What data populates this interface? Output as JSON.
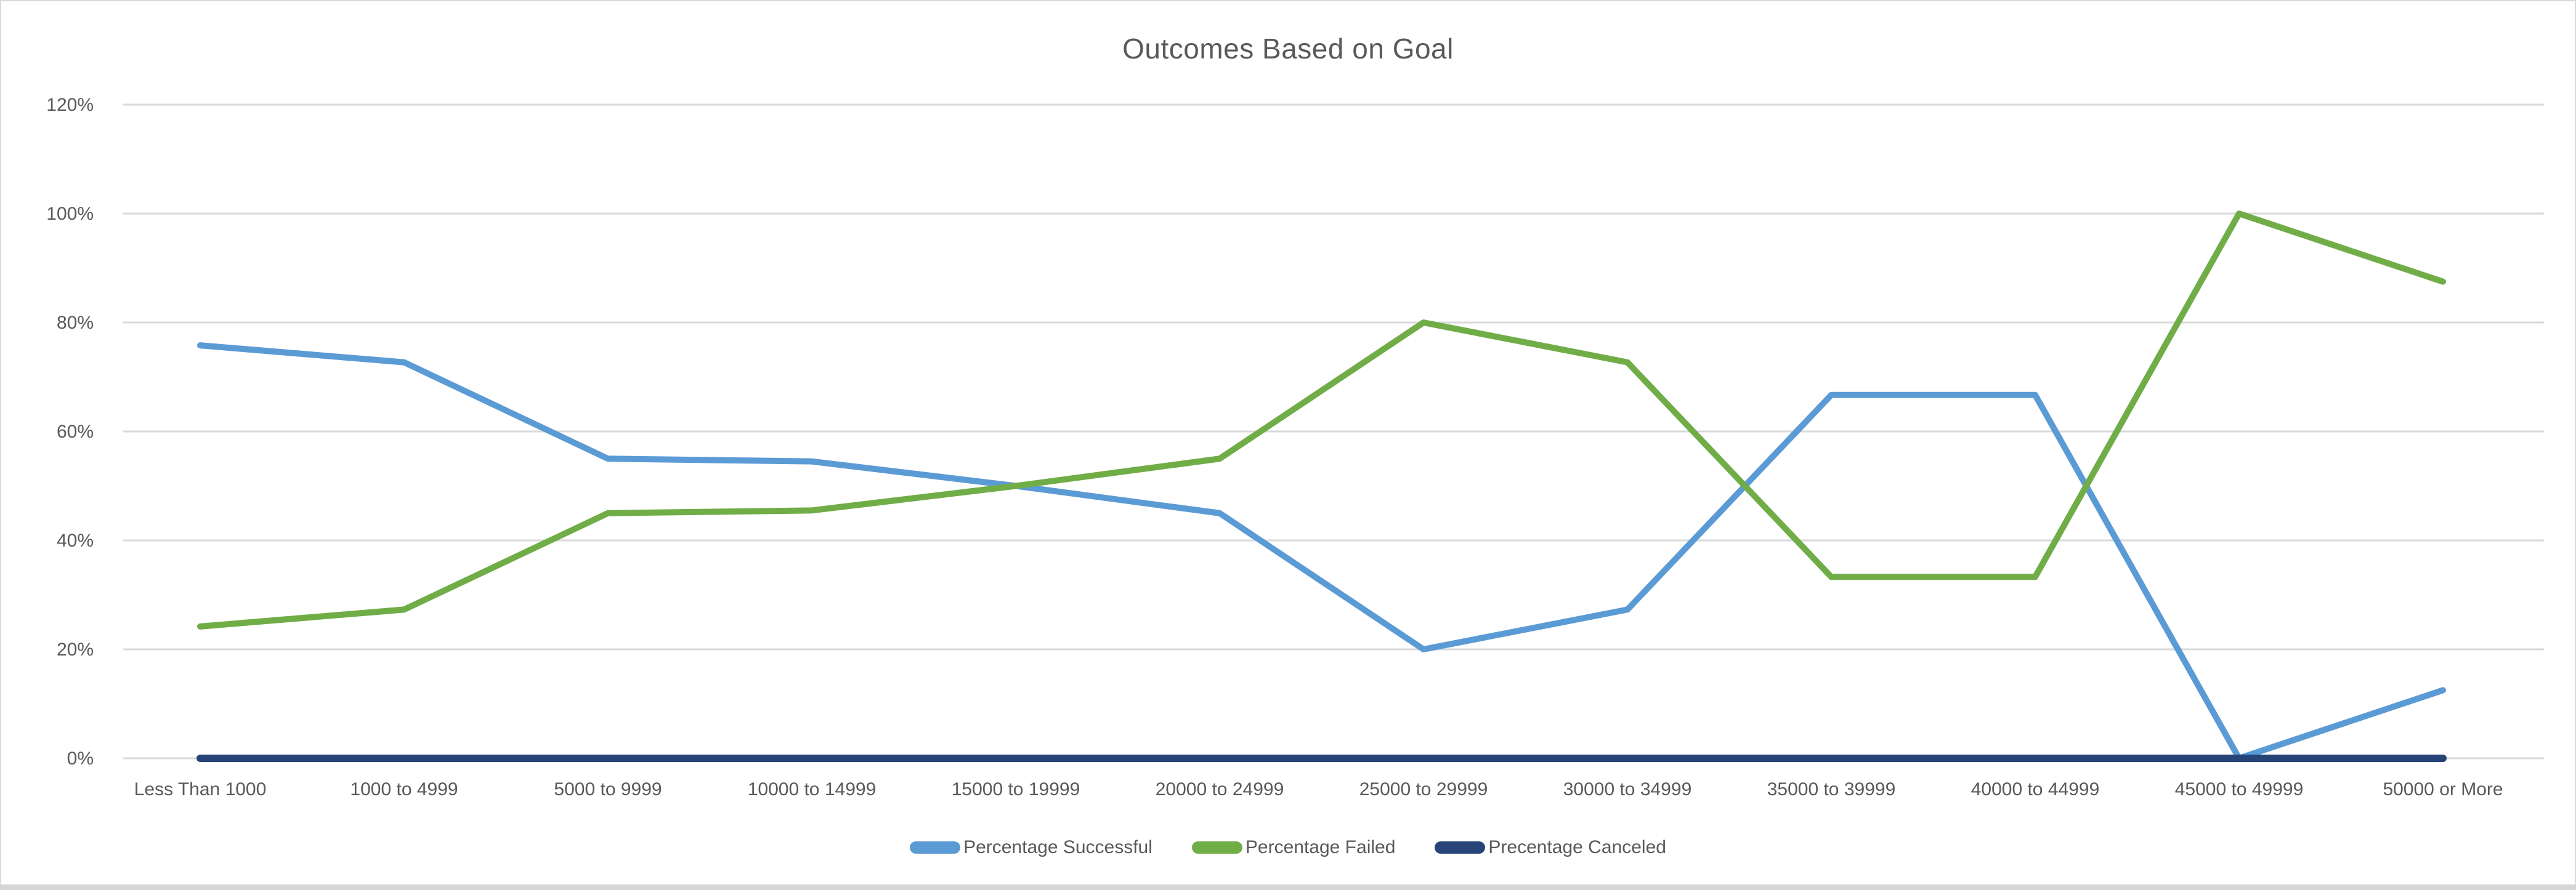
{
  "chart_data": {
    "type": "line",
    "title": "Outcomes Based on Goal",
    "categories": [
      "Less Than 1000",
      "1000 to 4999",
      "5000 to 9999",
      "10000 to 14999",
      "15000 to 19999",
      "20000 to 24999",
      "25000 to 29999",
      "30000 to 34999",
      "35000 to 39999",
      "40000 to 44999",
      "45000 to 49999",
      "50000 or More"
    ],
    "series": [
      {
        "name": "Percentage Successful",
        "color": "#5B9BD5",
        "values": [
          75.8,
          72.7,
          55,
          54.5,
          50,
          45,
          20,
          27.3,
          66.7,
          66.7,
          0,
          12.5
        ]
      },
      {
        "name": "Percentage Failed",
        "color": "#70AD47",
        "values": [
          24.2,
          27.3,
          45,
          45.5,
          50,
          55,
          80,
          72.7,
          33.3,
          33.3,
          100,
          87.5
        ]
      },
      {
        "name": "Precentage Canceled",
        "color": "#264478",
        "values": [
          0,
          0,
          0,
          0,
          0,
          0,
          0,
          0,
          0,
          0,
          0,
          0
        ]
      }
    ],
    "y_ticks": [
      "0%",
      "20%",
      "40%",
      "60%",
      "80%",
      "100%",
      "120%"
    ],
    "ylim": [
      0,
      120
    ],
    "grid": true,
    "legend_position": "bottom"
  },
  "styles": {
    "grid_color": "#D9D9D9",
    "tick_text_color": "#595959",
    "title_color": "#595959",
    "background": "#FFFFFF",
    "frame_border_color": "#D9D9D9",
    "bottom_strip_color": "#D6D6D6"
  }
}
